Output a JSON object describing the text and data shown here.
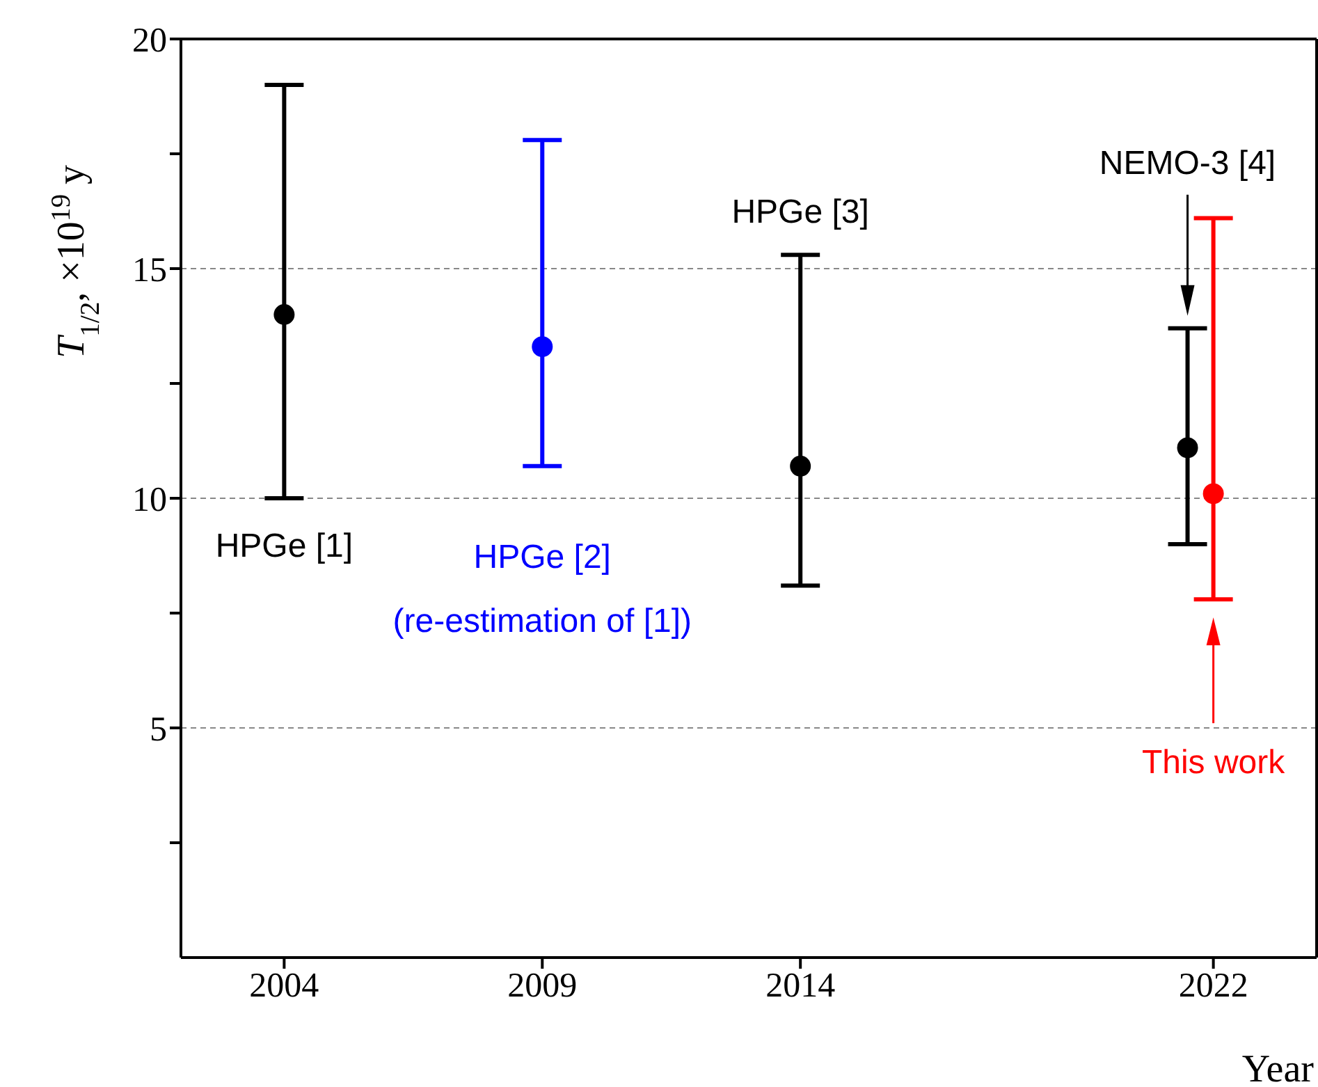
{
  "chart_data": {
    "type": "scatter",
    "ylabel": "T$_{1/2}$, ×10$^{19}$ y",
    "xlabel": "Year",
    "xlim": [
      2002,
      2024
    ],
    "xticks": [
      2004,
      2009,
      2014,
      2022
    ],
    "ylim": [
      0,
      20
    ],
    "yticks": [
      {
        "value": 2.5,
        "label": null
      },
      5,
      {
        "value": 7.5,
        "label": null
      },
      10,
      {
        "value": 12.5,
        "label": null
      },
      15,
      {
        "value": 17.5,
        "label": null
      },
      20
    ],
    "grid": "y",
    "marker": "circle",
    "series": [
      {
        "x": [
          2004
        ],
        "values": [
          14.0
        ],
        "errors": [
          [
            10.0,
            19.0
          ]
        ],
        "color": "#000000"
      },
      {
        "x": [
          2009
        ],
        "values": [
          13.3
        ],
        "errors": [
          [
            10.7,
            17.8
          ]
        ],
        "color": "#0000ff"
      },
      {
        "x": [
          2014
        ],
        "values": [
          10.7
        ],
        "errors": [
          [
            8.1,
            15.3
          ]
        ],
        "color": "#000000"
      },
      {
        "x": [
          2021.5
        ],
        "values": [
          11.1
        ],
        "errors": [
          [
            9.0,
            13.7
          ]
        ],
        "color": "#000000"
      },
      {
        "x": [
          2022
        ],
        "values": [
          10.1
        ],
        "errors": [
          [
            7.8,
            16.1
          ]
        ],
        "color": "#ff0000"
      }
    ],
    "annotations": [
      "HPGe [1]",
      "HPGe [2]\n(re-estimation of [1])",
      "HPGe [3]",
      "NEMO-3 [4]",
      "This work"
    ]
  }
}
